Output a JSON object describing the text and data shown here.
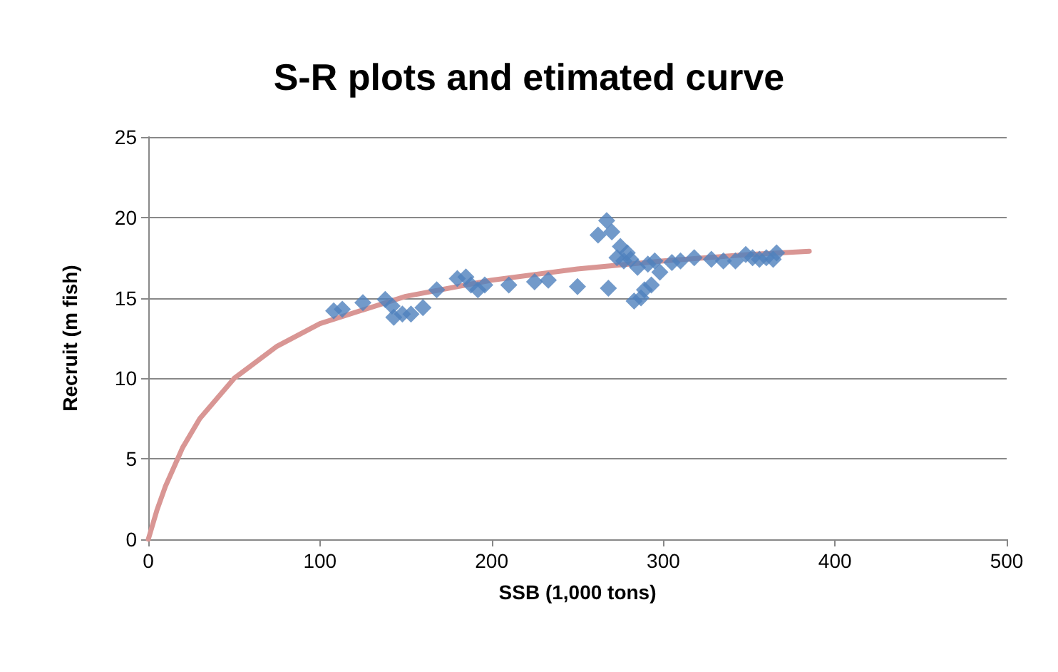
{
  "chart_data": {
    "type": "scatter",
    "title": "S-R plots and etimated curve",
    "xlabel": "SSB (1,000 tons)",
    "ylabel": "Recruit (m fish)",
    "xlim": [
      0,
      500
    ],
    "xticks": [
      0,
      100,
      200,
      300,
      400,
      500
    ],
    "ylim": [
      0,
      25
    ],
    "yticks": [
      0,
      5,
      10,
      15,
      20,
      25
    ],
    "grid": "y",
    "series": [
      {
        "marker": "diamond",
        "color": "#4f81bd",
        "x": [
          108,
          113,
          125,
          138,
          142,
          143,
          148,
          153,
          160,
          168,
          180,
          185,
          188,
          192,
          196,
          210,
          225,
          233,
          250,
          262,
          267,
          268,
          270,
          273,
          275,
          277,
          279,
          281,
          283,
          285,
          287,
          289,
          291,
          293,
          295,
          298,
          305,
          310,
          318,
          328,
          335,
          342,
          348,
          352,
          356,
          360,
          364,
          366
        ],
        "values": [
          14.2,
          14.3,
          14.7,
          14.9,
          14.5,
          13.8,
          14.0,
          14.0,
          14.4,
          15.5,
          16.2,
          16.3,
          15.8,
          15.5,
          15.8,
          15.8,
          16.0,
          16.1,
          15.7,
          18.9,
          19.8,
          15.6,
          19.1,
          17.5,
          18.2,
          17.3,
          17.8,
          17.4,
          14.8,
          16.9,
          15.0,
          15.5,
          17.1,
          15.8,
          17.3,
          16.6,
          17.2,
          17.3,
          17.5,
          17.4,
          17.3,
          17.3,
          17.7,
          17.5,
          17.4,
          17.5,
          17.4,
          17.8
        ]
      },
      {
        "type": "line",
        "marker": "none",
        "color": "#d99694",
        "x": [
          0,
          5,
          10,
          20,
          30,
          50,
          75,
          100,
          150,
          200,
          250,
          300,
          350,
          385
        ],
        "values": [
          0,
          1.8,
          3.3,
          5.7,
          7.5,
          10.0,
          12.0,
          13.4,
          15.1,
          16.1,
          16.8,
          17.3,
          17.7,
          17.9
        ]
      }
    ]
  }
}
